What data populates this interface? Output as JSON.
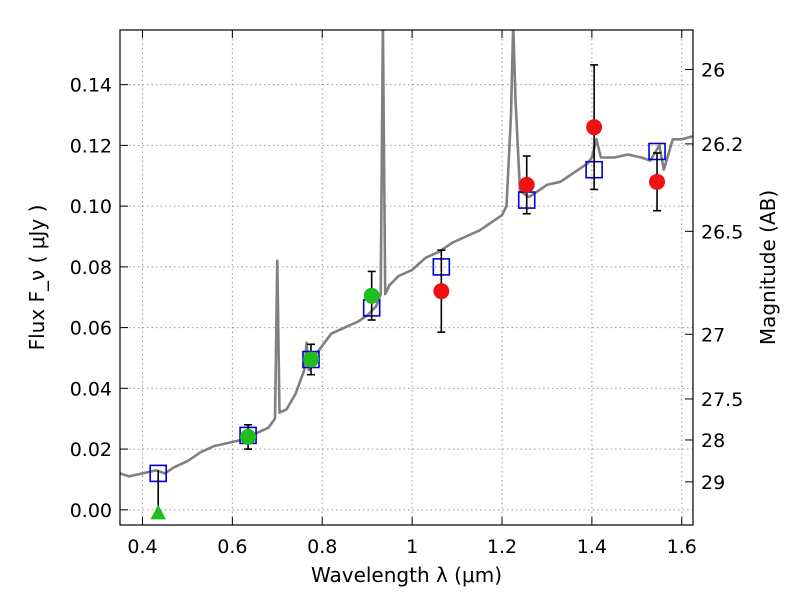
{
  "chart_data": {
    "type": "scatter",
    "title": "",
    "xlabel": "Wavelength  λ (μm)",
    "ylabel": "Flux  F_ν  ( μJy )",
    "ylabel_right": "Magnitude (AB)",
    "xlim": [
      0.35,
      1.625
    ],
    "ylim": [
      -0.005,
      0.158
    ],
    "grid": true,
    "x_ticks": [
      0.4,
      0.6,
      0.8,
      1.0,
      1.2,
      1.4,
      1.6
    ],
    "x_tick_labels": [
      "0.4",
      "0.6",
      "0.8",
      "1",
      "1.2",
      "1.4",
      "1.6"
    ],
    "y_ticks": [
      0.0,
      0.02,
      0.04,
      0.06,
      0.08,
      0.1,
      0.12,
      0.14
    ],
    "y_tick_labels": [
      "0.00",
      "0.02",
      "0.04",
      "0.06",
      "0.08",
      "0.10",
      "0.12",
      "0.14"
    ],
    "right_axis_ticks": [
      {
        "label": "26",
        "flux": 0.145
      },
      {
        "label": "26.2",
        "flux": 0.1205
      },
      {
        "label": "26.5",
        "flux": 0.0917
      },
      {
        "label": "27",
        "flux": 0.0578
      },
      {
        "label": "27.5",
        "flux": 0.0365
      },
      {
        "label": "28",
        "flux": 0.023
      },
      {
        "label": "29",
        "flux": 0.0092
      }
    ],
    "sed_model": {
      "x": [
        0.35,
        0.37,
        0.4,
        0.43,
        0.45,
        0.47,
        0.5,
        0.53,
        0.56,
        0.59,
        0.62,
        0.65,
        0.68,
        0.695,
        0.7,
        0.705,
        0.72,
        0.74,
        0.76,
        0.765,
        0.77,
        0.78,
        0.8,
        0.82,
        0.85,
        0.88,
        0.9,
        0.92,
        0.93,
        0.935,
        0.94,
        0.95,
        0.97,
        1.0,
        1.03,
        1.06,
        1.09,
        1.12,
        1.15,
        1.18,
        1.2,
        1.21,
        1.22,
        1.225,
        1.23,
        1.24,
        1.26,
        1.28,
        1.3,
        1.33,
        1.36,
        1.39,
        1.4,
        1.41,
        1.42,
        1.45,
        1.48,
        1.51,
        1.53,
        1.55,
        1.56,
        1.58,
        1.6,
        1.625
      ],
      "y": [
        0.012,
        0.011,
        0.012,
        0.013,
        0.012,
        0.014,
        0.016,
        0.019,
        0.021,
        0.022,
        0.023,
        0.025,
        0.027,
        0.03,
        0.082,
        0.032,
        0.033,
        0.038,
        0.046,
        0.055,
        0.046,
        0.05,
        0.054,
        0.058,
        0.06,
        0.062,
        0.064,
        0.067,
        0.071,
        0.16,
        0.071,
        0.074,
        0.077,
        0.079,
        0.083,
        0.085,
        0.088,
        0.09,
        0.092,
        0.095,
        0.097,
        0.1,
        0.13,
        0.16,
        0.135,
        0.105,
        0.103,
        0.105,
        0.107,
        0.108,
        0.111,
        0.114,
        0.116,
        0.122,
        0.116,
        0.116,
        0.117,
        0.116,
        0.115,
        0.12,
        0.112,
        0.122,
        0.122,
        0.123
      ]
    },
    "model_photometry": {
      "x": [
        0.435,
        0.635,
        0.775,
        0.91,
        1.065,
        1.255,
        1.405,
        1.545
      ],
      "y": [
        0.012,
        0.0245,
        0.0495,
        0.0665,
        0.08,
        0.102,
        0.112,
        0.118
      ]
    },
    "detections_green": {
      "x": [
        0.635,
        0.775,
        0.91
      ],
      "y": [
        0.024,
        0.0495,
        0.0705
      ],
      "yerr": [
        0.004,
        0.005,
        0.008
      ]
    },
    "detections_red": {
      "x": [
        1.065,
        1.255,
        1.405,
        1.545
      ],
      "y": [
        0.072,
        0.107,
        0.126,
        0.108
      ],
      "yerr": [
        0.0135,
        0.0095,
        0.0205,
        0.0095
      ]
    },
    "upper_limit": {
      "x": [
        0.435
      ],
      "y": [
        -0.001
      ],
      "y_top": [
        0.013
      ]
    },
    "colors": {
      "model": "#808080",
      "model_photometry": "#0000cc",
      "green": "#1fbe1f",
      "red": "#ee1111",
      "errorbar": "#000000",
      "grid": "#999999"
    }
  }
}
